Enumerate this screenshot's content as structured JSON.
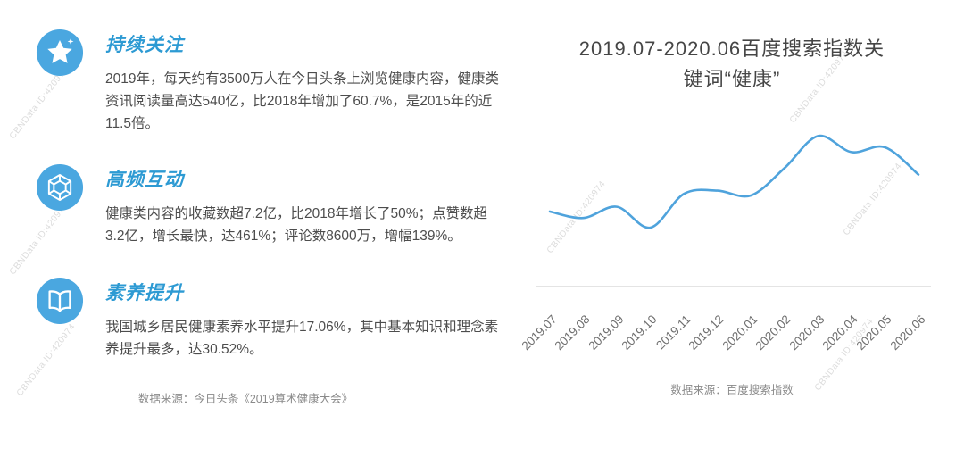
{
  "watermark": "CBNData ID:420974",
  "colors": {
    "accent_blue": "#4aa7e0",
    "heading_blue": "#2d9ad3",
    "line_blue": "#4fa3dc",
    "body_text": "#4d4d4d",
    "muted_text": "#8a8a8a",
    "watermark_gray": "#dcdcdc"
  },
  "left_panel": {
    "sections": [
      {
        "icon": "star-icon",
        "title": "持续关注",
        "body": "2019年，每天约有3500万人在今日头条上浏览健康内容，健康类资讯阅读量高达540亿，比2018年增加了60.7%，是2015年的近11.5倍。"
      },
      {
        "icon": "hexagon-icon",
        "title": "高频互动",
        "body": "健康类内容的收藏数超7.2亿，比2018年增长了50%；点赞数超3.2亿，增长最快，达461%；评论数8600万，增幅139%。"
      },
      {
        "icon": "book-icon",
        "title": "素养提升",
        "body": "我国城乡居民健康素养水平提升17.06%，其中基本知识和理念素养提升最多，达30.52%。"
      }
    ],
    "source": "数据来源：今日头条《2019算术健康大会》"
  },
  "right_panel": {
    "source": "数据来源：百度搜索指数"
  },
  "chart_data": {
    "type": "line",
    "title": "2019.07-2020.06百度搜索指数关键词“健康”",
    "title_lines": [
      "2019.07-2020.06百度搜索指数关",
      "键词“健康”"
    ],
    "categories": [
      "2019.07",
      "2019.08",
      "2019.09",
      "2019.10",
      "2019.11",
      "2019.12",
      "2020.01",
      "2020.02",
      "2020.03",
      "2020.04",
      "2020.05",
      "2020.06"
    ],
    "values": [
      45,
      41,
      48,
      35,
      56,
      58,
      55,
      72,
      92,
      82,
      85,
      68
    ],
    "ylim": [
      0,
      100
    ],
    "xlabel": "",
    "ylabel": "",
    "grid": false,
    "legend": false,
    "line_color": "#4fa3dc",
    "smooth": true
  }
}
